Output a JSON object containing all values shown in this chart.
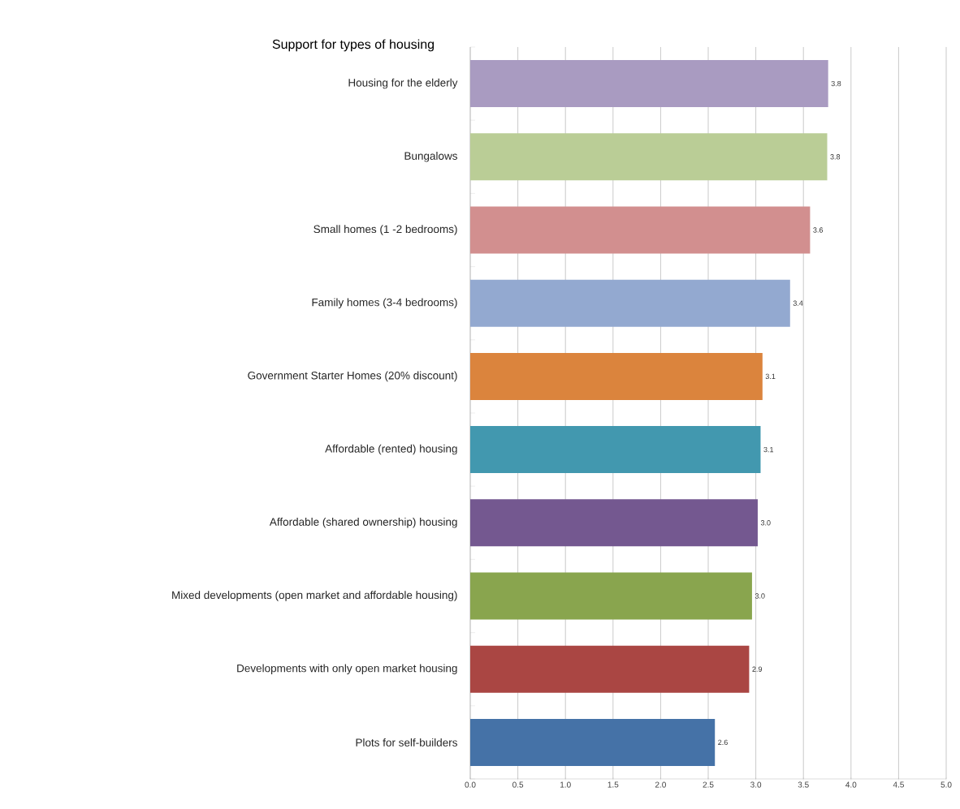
{
  "chart_data": {
    "type": "bar",
    "orientation": "horizontal",
    "title": "Support for types of housing",
    "categories": [
      "Housing for the elderly",
      "Bungalows",
      "Small homes (1 -2 bedrooms)",
      "Family homes (3-4 bedrooms)",
      "Government Starter Homes (20% discount)",
      "Affordable (rented) housing",
      "Affordable (shared ownership) housing",
      "Mixed developments (open market and affordable housing)",
      "Developments with only open market housing",
      "Plots for self-builders"
    ],
    "values": [
      3.76,
      3.75,
      3.57,
      3.36,
      3.07,
      3.05,
      3.02,
      2.96,
      2.93,
      2.57
    ],
    "value_labels": [
      "3.8",
      "3.8",
      "3.6",
      "3.4",
      "3.1",
      "3.1",
      "3.0",
      "3.0",
      "2.9",
      "2.6"
    ],
    "colors": [
      "#a99bc1",
      "#bacd96",
      "#d28f8f",
      "#93a9d0",
      "#db843d",
      "#4298af",
      "#745890",
      "#89a54e",
      "#aa4643",
      "#4572a7"
    ],
    "xlim": [
      0,
      5
    ],
    "xticks": [
      {
        "value": 0,
        "label": "0.0"
      },
      {
        "value": 0.5,
        "label": "0.5"
      },
      {
        "value": 1,
        "label": "1.0"
      },
      {
        "value": 1.5,
        "label": "1.5"
      },
      {
        "value": 2,
        "label": "2.0"
      },
      {
        "value": 2.5,
        "label": "2.5"
      },
      {
        "value": 3,
        "label": "3.0"
      },
      {
        "value": 3.5,
        "label": "3.5"
      },
      {
        "value": 4,
        "label": "4.0"
      },
      {
        "value": 4.5,
        "label": "4.5"
      },
      {
        "value": 5,
        "label": "5.0"
      }
    ],
    "grid": "x"
  }
}
